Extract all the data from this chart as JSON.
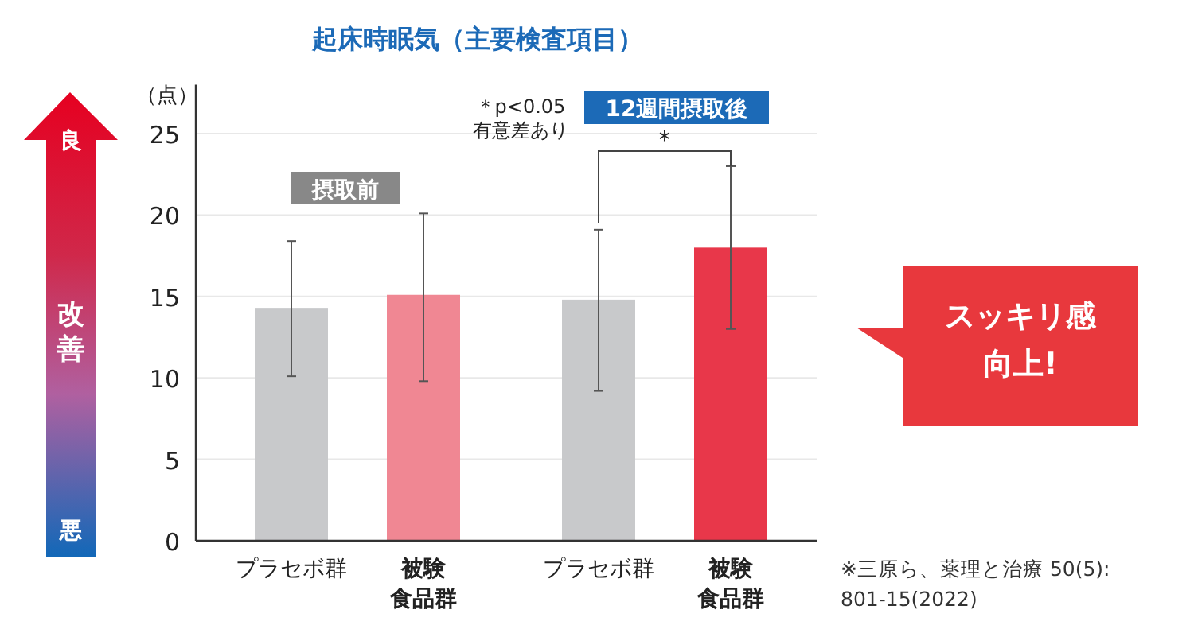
{
  "chart_data": {
    "type": "bar",
    "title": "起床時眠気（主要検査項目）",
    "ylabel": "（点）",
    "categories": [
      "プラセボ群",
      "被験食品群",
      "プラセボ群",
      "被験食品群"
    ],
    "values": [
      14.3,
      15.1,
      14.8,
      18.0
    ],
    "colors": [
      "#c8c9cb",
      "#f08793",
      "#c8c9cb",
      "#e8374a"
    ],
    "errors": [
      [
        10.1,
        18.4
      ],
      [
        9.8,
        20.1
      ],
      [
        9.2,
        19.1
      ],
      [
        13.0,
        23.0
      ]
    ],
    "ylim": [
      0,
      28
    ],
    "yticks": [
      0,
      5,
      10,
      15,
      20,
      25
    ],
    "grid": "y",
    "annotations": [
      "摂取前",
      "12週間摂取後",
      "＊p<0.05\n有意差あり",
      "＊",
      "スッキリ感向上!",
      "良",
      "改善",
      "悪",
      "※三原ら、薬理と治療 50(5):\n801-15(2022)"
    ]
  }
}
